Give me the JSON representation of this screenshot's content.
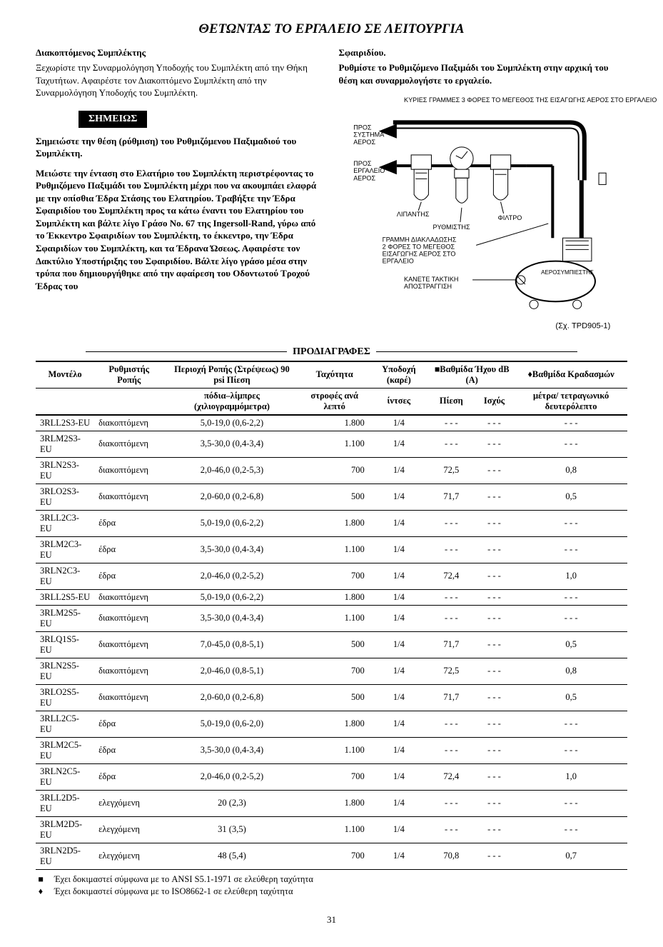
{
  "title": "ΘΕΤΩΝΤΑΣ ΤΟ ΕΡΓΑΛΕΙΟ ΣΕ ΛΕΙΤΟΥΡΓΙΑ",
  "left": {
    "h1": "Διακοπτόμενος Συμπλέκτης",
    "p1": "Ξεχωρίστε την Συναρμολόγηση Υποδοχής του Συμπλέκτη από την Θήκη Ταχυτήτων. Αφαιρέστε τον Διακοπτόμενο Συμπλέκτη από την Συναρμολόγηση Υποδοχής του Συμπλέκτη.",
    "note": "ΣΗΜΕΙΩΣ",
    "p2": "Σημειώστε την θέση (ρύθμιση) του Ρυθμιζόμενου Παξιμαδιού του Συμπλέκτη.",
    "p3": "Μειώστε την ένταση στο Ελατήριο του Συμπλέκτη περιστρέφοντας το Ρυθμιζόμενο Παξιμάδι του Συμπλέκτη μέχρι που να ακουμπάει ελαφρά με την οπίσθια Έδρα Στάσης του Ελατηρίου. Τραβήξτε την Έδρα Σφαιριδίου του Συμπλέκτη προς τα κάτω έναντι του Ελατηρίου του Συμπλέκτη και βάλτε λίγο Γράσο No. 67 της Ingersoll-Rand, γύρω από το Έκκεντρο Σφαιριδίων του Συμπλέκτη, το έκκεντρο, την Έδρα Σφαιριδίων του Συμπλέκτη, και τα Έδρανα Ώσεως. Αφαιρέστε τον Δακτύλιο Υποστήριξης του Σφαιριδίου. Βάλτε λίγο γράσο μέσα στην τρύπα που δημιουργήθηκε από την αφαίρεση του Οδοντωτού Τροχού Έδρας του"
  },
  "right": {
    "h1": "Σφαιριδίου.",
    "p1": "Ρυθμίστε το Ρυθμιζόμενο Παξιμάδι του Συμπλέκτη στην αρχική του θέση και συναρμολογήστε το εργαλείο."
  },
  "diagram": {
    "top_label": "ΚΥΡΙΕΣ ΓΡΑΜΜΕΣ 3 ΦΟΡΕΣ ΤΟ ΜΕΓΕΘΟΣ ΤΗΣ ΕΙΣΑΓΩΓΗΣ ΑΕΡΟΣ ΣΤΟ ΕΡΓΑΛΕΙΟ",
    "to_system": "ΠΡΟΣ ΣΥΣΤΗΜΑ ΑΕΡΟΣ",
    "to_tool": "ΠΡΟΣ ΕΡΓΑΛΕΙΟ ΑΕΡΟΣ",
    "lubricator": "ΛΙΠΑΝΤΗΣ",
    "regulator": "ΡΥΘΜΙΣΤΗΣ",
    "filter": "ΦΙΛΤΡΟ",
    "branch": "ΓΡΑΜΜΗ ΔΙΑΚΛΑΔΩΣΗΣ 2 ΦΟΡΕΣ ΤΟ ΜΕΓΕΘΟΣ ΕΙΣΑΓΩΓΗΣ ΑΕΡΟΣ ΣΤΟ ΕΡΓΑΛΕΙΟ",
    "drain": "ΚΑΝΕΤΕ ΤΑΚΤΙΚΗ ΑΠΟΣΤΡΑΓΓΙΣΗ",
    "compressor": "ΑΕΡΟΣΥΜΠΙΕΣΤΗΣ",
    "fig": "(Σχ. TPD905-1)"
  },
  "spec_title": "ΠΡΟΔΙΑΓΡΑΦΕΣ",
  "headers1": {
    "model": "Μοντέλο",
    "torque_adj": "Ρυθμιστής Ροπής",
    "torque_range": "Περιοχή Ροπής (Στρέψεως) 90 psi Πίεση",
    "speed": "Ταχύτητα",
    "drive": "Υποδοχή (καρέ)",
    "sound": "■Βαθμίδα Ήχου dB (A)",
    "vib": "♦Βαθμίδα Κραδασμών"
  },
  "headers2": {
    "torque_units": "πόδια–λίμπρες (χιλιογραμμόμετρα)",
    "speed_units": "στροφές ανά λεπτό",
    "drive_units": "ίντσες",
    "pressure": "Πίεση",
    "power": "Ισχύς",
    "vib_units": "μέτρα/ τετραγωνικό δευτερόλεπτο"
  },
  "rows": [
    [
      "3RLL2S3-EU",
      "διακοπτόμενη",
      "5,0-19,0 (0,6-2,2)",
      "1.800",
      "1/4",
      "- - -",
      "- - -",
      "- - -"
    ],
    [
      "3RLM2S3-EU",
      "διακοπτόμενη",
      "3,5-30,0 (0,4-3,4)",
      "1.100",
      "1/4",
      "- - -",
      "- - -",
      "- - -"
    ],
    [
      "3RLN2S3-EU",
      "διακοπτόμενη",
      "2,0-46,0 (0,2-5,3)",
      "700",
      "1/4",
      "72,5",
      "- - -",
      "0,8"
    ],
    [
      "3RLO2S3-EU",
      "διακοπτόμενη",
      "2,0-60,0 (0,2-6,8)",
      "500",
      "1/4",
      "71,7",
      "- - -",
      "0,5"
    ],
    [
      "3RLL2C3-EU",
      "έδρα",
      "5,0-19,0 (0,6-2,2)",
      "1.800",
      "1/4",
      "- - -",
      "- - -",
      "- - -"
    ],
    [
      "3RLM2C3-EU",
      "έδρα",
      "3,5-30,0 (0,4-3,4)",
      "1.100",
      "1/4",
      "- - -",
      "- - -",
      "- - -"
    ],
    [
      "3RLN2C3-EU",
      "έδρα",
      "2,0-46,0 (0,2-5,2)",
      "700",
      "1/4",
      "72,4",
      "- - -",
      "1,0"
    ],
    [
      "3RLL2S5-EU",
      "διακοπτόμενη",
      "5,0-19,0 (0,6-2,2)",
      "1.800",
      "1/4",
      "- - -",
      "- - -",
      "- - -"
    ],
    [
      "3RLM2S5-EU",
      "διακοπτόμενη",
      "3,5-30,0 (0,4-3,4)",
      "1.100",
      "1/4",
      "- - -",
      "- - -",
      "- - -"
    ],
    [
      "3RLQ1S5-EU",
      "διακοπτόμενη",
      "7,0-45,0 (0,8-5,1)",
      "500",
      "1/4",
      "71,7",
      "- - -",
      "0,5"
    ],
    [
      "3RLN2S5-EU",
      "διακοπτόμενη",
      "2,0-46,0 (0,8-5,1)",
      "700",
      "1/4",
      "72,5",
      "- - -",
      "0,8"
    ],
    [
      "3RLO2S5-EU",
      "διακοπτόμενη",
      "2,0-60,0 (0,2-6,8)",
      "500",
      "1/4",
      "71,7",
      "- - -",
      "0,5"
    ],
    [
      "3RLL2C5-EU",
      "έδρα",
      "5,0-19,0 (0,6-2,0)",
      "1.800",
      "1/4",
      "- - -",
      "- - -",
      "- - -"
    ],
    [
      "3RLM2C5-EU",
      "έδρα",
      "3,5-30,0 (0,4-3,4)",
      "1.100",
      "1/4",
      "- - -",
      "- - -",
      "- - -"
    ],
    [
      "3RLN2C5-EU",
      "έδρα",
      "2,0-46,0 (0,2-5,2)",
      "700",
      "1/4",
      "72,4",
      "- - -",
      "1,0"
    ],
    [
      "3RLL2D5-EU",
      "ελεγχόμενη",
      "20 (2,3)",
      "1.800",
      "1/4",
      "- - -",
      "- - -",
      "- - -"
    ],
    [
      "3RLM2D5-EU",
      "ελεγχόμενη",
      "31 (3,5)",
      "1.100",
      "1/4",
      "- - -",
      "- - -",
      "- - -"
    ],
    [
      "3RLN2D5-EU",
      "ελεγχόμενη",
      "48 (5,4)",
      "700",
      "1/4",
      "70,8",
      "- - -",
      "0,7"
    ]
  ],
  "footnotes": {
    "f1_sym": "■",
    "f1": "Έχει δοκιμαστεί σύμφωνα με το ANSI S5.1-1971 σε ελεύθερη ταχύτητα",
    "f2_sym": "♦",
    "f2": "Έχει δοκιμαστεί σύμφωνα με το ISO8662-1 σε ελεύθερη ταχύτητα"
  },
  "page_num": "31"
}
